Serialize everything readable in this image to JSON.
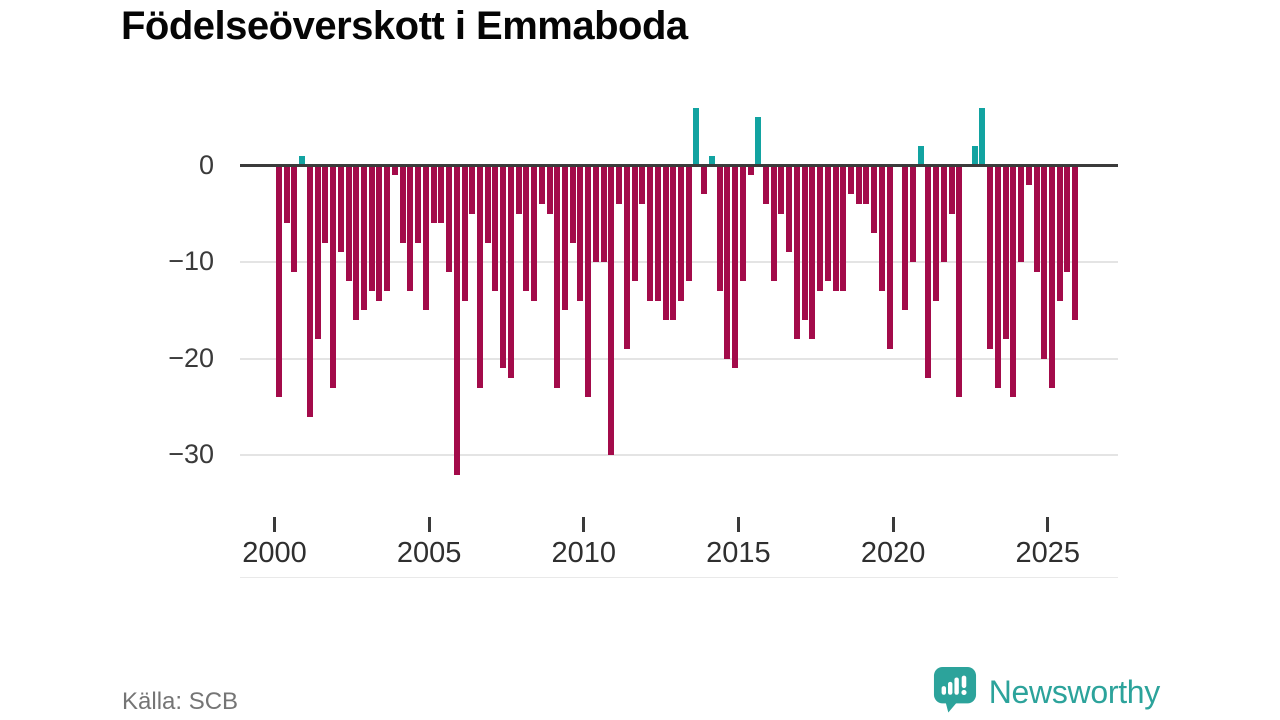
{
  "title": "Födelseöverskott i Emmaboda",
  "source": "Källa: SCB",
  "branding": {
    "name": "Newsworthy",
    "icon": "bar-chart-speech-bubble-icon",
    "color": "#2ca39b"
  },
  "colors": {
    "negative_bar": "#a30b4a",
    "positive_bar": "#12a3a1",
    "zero_line": "#3b3b3b",
    "grid": "#e4e4e4",
    "axis_text": "#3a3a3a",
    "title_text": "#050505",
    "source_text": "#757575",
    "background": "#ffffff"
  },
  "y_axis": {
    "tick_labels": [
      "0",
      "−10",
      "−20",
      "−30"
    ]
  },
  "x_axis": {
    "tick_labels": [
      "2000",
      "2005",
      "2010",
      "2015",
      "2020",
      "2025"
    ]
  },
  "chart_data": {
    "type": "bar",
    "title": "Födelseöverskott i Emmaboda",
    "x_start": "2000-Q1",
    "frequency": "quarterly",
    "xlabel": "",
    "ylabel": "",
    "y_ticks": [
      0,
      -10,
      -20,
      -30
    ],
    "x_tick_years": [
      2000,
      2005,
      2010,
      2015,
      2020,
      2025
    ],
    "ylim": [
      -33,
      7
    ],
    "grid": "horizontal",
    "legend": "none",
    "values": [
      -24,
      -6,
      -11,
      1,
      -26,
      -18,
      -8,
      -23,
      -9,
      -12,
      -16,
      -15,
      -13,
      -14,
      -13,
      -1,
      -8,
      -13,
      -8,
      -15,
      -6,
      -6,
      -11,
      -32,
      -14,
      -5,
      -23,
      -8,
      -13,
      -21,
      -22,
      -5,
      -13,
      -14,
      -4,
      -5,
      -23,
      -15,
      -8,
      -14,
      -24,
      -10,
      -10,
      -30,
      -4,
      -19,
      -12,
      -4,
      -14,
      -14,
      -16,
      -16,
      -14,
      -12,
      6,
      -3,
      1,
      -13,
      -20,
      -21,
      -12,
      -1,
      5,
      -4,
      -12,
      -5,
      -9,
      -18,
      -16,
      -18,
      -13,
      -12,
      -13,
      -13,
      -3,
      -4,
      -4,
      -7,
      -13,
      -19,
      0,
      -15,
      -10,
      2,
      -22,
      -14,
      -10,
      -5,
      -24,
      0,
      2,
      6,
      -19,
      -23,
      -18,
      -24,
      -10,
      -2,
      -11,
      -20,
      -23,
      -14,
      -11,
      -16
    ]
  }
}
